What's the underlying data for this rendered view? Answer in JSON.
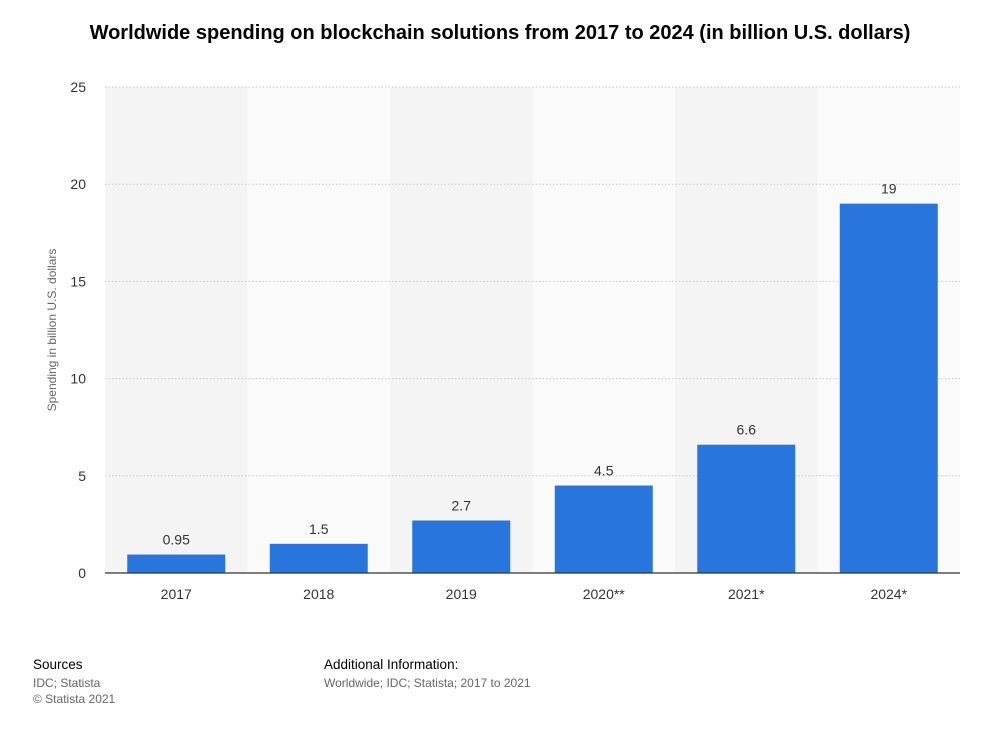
{
  "chart_data": {
    "type": "bar",
    "title": "Worldwide spending on blockchain solutions from 2017 to 2024 (in billion U.S. dollars)",
    "ylabel": "Spending in billion U.S. dollars",
    "xlabel": "",
    "categories": [
      "2017",
      "2018",
      "2019",
      "2020**",
      "2021*",
      "2024*"
    ],
    "values": [
      0.95,
      1.5,
      2.7,
      4.5,
      6.6,
      19
    ],
    "value_labels": [
      "0.95",
      "1.5",
      "2.7",
      "4.5",
      "6.6",
      "19"
    ],
    "ylim": [
      0,
      25
    ],
    "yticks": [
      0,
      5,
      10,
      15,
      20,
      25
    ],
    "grid": true,
    "bar_color": "#2876dd"
  },
  "footer": {
    "sources_heading": "Sources",
    "sources_lines": [
      "IDC; Statista",
      "© Statista 2021"
    ],
    "additional_heading": "Additional Information:",
    "additional_line": "Worldwide; IDC; Statista; 2017 to 2021"
  }
}
